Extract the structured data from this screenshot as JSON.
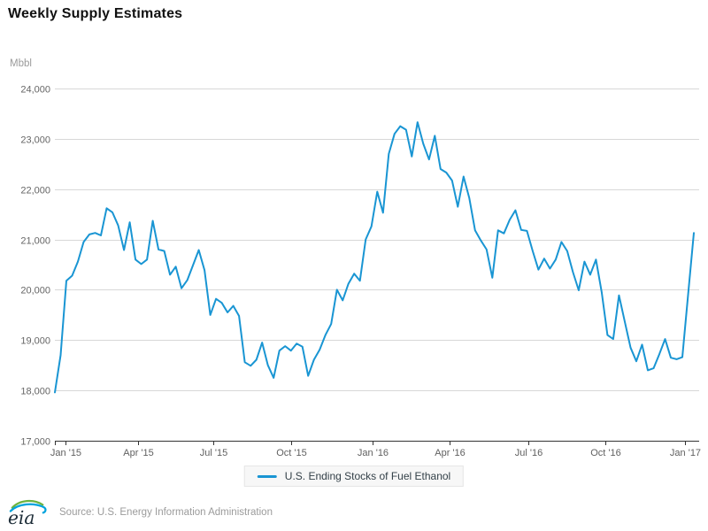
{
  "title": "Weekly Supply Estimates",
  "y_axis": {
    "unit_label": "Mbbl",
    "tick_labels": [
      "24,000",
      "23,000",
      "22,000",
      "21,000",
      "20,000",
      "19,000",
      "18,000",
      "17,000"
    ]
  },
  "x_axis": {
    "tick_labels": [
      "Jan '15",
      "Apr '15",
      "Jul '15",
      "Oct '15",
      "Jan '16",
      "Apr '16",
      "Jul '16",
      "Oct '16",
      "Jan '17"
    ]
  },
  "legend": {
    "series_label": "U.S. Ending Stocks of Fuel Ethanol"
  },
  "footer": {
    "logo_text": "eia",
    "source_text": "Source: U.S. Energy Information Administration"
  },
  "colors": {
    "line": "#1995d3",
    "grid": "#d8d8d8",
    "axis": "#333333",
    "tick_text": "#606060",
    "y_tick_text": "#666666",
    "muted_text": "#9b9b9b",
    "title_text": "#111111",
    "legend_text": "#334048",
    "legend_bg": "#f7f7f7",
    "legend_border": "#e6e6e6",
    "logo_text_color": "#1b2b36",
    "logo_green": "#6cb33f",
    "logo_blue": "#00a3dd"
  },
  "chart_data": {
    "type": "line",
    "title": "Weekly Supply Estimates",
    "ylabel": "Mbbl",
    "ylim": [
      17000,
      24000
    ],
    "y_tick_step": 1000,
    "grid": "horizontal",
    "legend_position": "bottom-center",
    "x_tick_labels": [
      "Jan '15",
      "Apr '15",
      "Jul '15",
      "Oct '15",
      "Jan '16",
      "Apr '16",
      "Jul '16",
      "Oct '16",
      "Jan '17"
    ],
    "x_tick_positions": [
      1.85,
      14.5,
      27.5,
      41.1,
      55.2,
      68.6,
      82.2,
      95.7,
      109.4
    ],
    "series": [
      {
        "name": "U.S. Ending Stocks of Fuel Ethanol",
        "color": "#1995d3",
        "values": [
          17960,
          18700,
          20180,
          20280,
          20560,
          20950,
          21100,
          21130,
          21080,
          21620,
          21540,
          21280,
          20790,
          21340,
          20600,
          20510,
          20600,
          21370,
          20800,
          20770,
          20300,
          20460,
          20030,
          20190,
          20490,
          20790,
          20390,
          19500,
          19820,
          19740,
          19550,
          19680,
          19480,
          18560,
          18490,
          18610,
          18950,
          18500,
          18250,
          18790,
          18880,
          18790,
          18930,
          18870,
          18290,
          18610,
          18810,
          19100,
          19320,
          20000,
          19790,
          20120,
          20320,
          20180,
          21000,
          21260,
          21950,
          21530,
          22700,
          23100,
          23250,
          23180,
          22650,
          23330,
          22900,
          22590,
          23060,
          22400,
          22330,
          22170,
          21650,
          22250,
          21820,
          21180,
          20980,
          20800,
          20240,
          21180,
          21120,
          21390,
          21580,
          21190,
          21170,
          20770,
          20400,
          20620,
          20420,
          20600,
          20950,
          20770,
          20350,
          19990,
          20560,
          20300,
          20600,
          19950,
          19100,
          19020,
          19890,
          19370,
          18850,
          18580,
          18910,
          18400,
          18440,
          18720,
          19020,
          18650,
          18620,
          18660,
          19900,
          21130
        ]
      }
    ]
  }
}
